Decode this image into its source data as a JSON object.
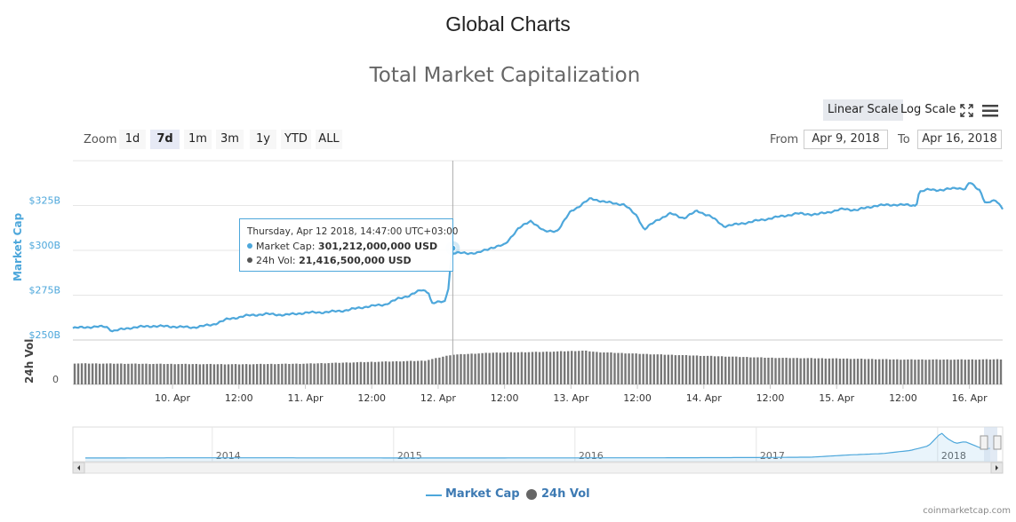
{
  "page": {
    "title": "Global Charts",
    "credit": "coinmarketcap.com"
  },
  "chart_title": "Total Market Capitalization",
  "scale": {
    "linear": "Linear Scale",
    "log": "Log Scale"
  },
  "zoom": {
    "label": "Zoom",
    "buttons": [
      "1d",
      "7d",
      "1m",
      "3m",
      "1y",
      "YTD",
      "ALL"
    ],
    "active": "7d"
  },
  "range": {
    "from_label": "From",
    "from_value": "Apr 9, 2018",
    "to_label": "To",
    "to_value": "Apr 16, 2018"
  },
  "tooltip": {
    "header": "Thursday, Apr 12 2018, 14:47:00 UTC+03:00",
    "market_cap_label": "Market Cap:",
    "market_cap_value": "301,212,000,000 USD",
    "vol_label": "24h Vol:",
    "vol_value": "21,416,500,000 USD"
  },
  "legend": {
    "market_cap": "Market Cap",
    "vol": "24h Vol"
  },
  "colors": {
    "market_cap": "#4da7db",
    "volume": "#666666",
    "grid": "#e6e6e6",
    "navigator_line": "#4da7db"
  },
  "icons": [
    "fullscreen-icon",
    "menu-icon"
  ],
  "chart_data": {
    "type": "line",
    "title": "Total Market Capitalization",
    "ylabel": "Market Cap",
    "ylabel2": "24h Vol",
    "y_ticks": [
      "$250B",
      "$275B",
      "$300B",
      "$325B"
    ],
    "ylim": [
      250,
      350
    ],
    "vol_ticks": [
      "0"
    ],
    "x_ticks": [
      "10. Apr",
      "12:00",
      "11. Apr",
      "12:00",
      "12. Apr",
      "12:00",
      "13. Apr",
      "12:00",
      "14. Apr",
      "12:00",
      "15. Apr",
      "12:00",
      "16. Apr",
      "12:00"
    ],
    "x_start": 9.25,
    "x_end": 16.25,
    "series": [
      {
        "name": "Market Cap",
        "unit": "billion USD",
        "points": [
          [
            9.25,
            256.6
          ],
          [
            9.35,
            257.2
          ],
          [
            9.5,
            257.5
          ],
          [
            9.55,
            255
          ],
          [
            9.7,
            257
          ],
          [
            9.85,
            257.8
          ],
          [
            10.0,
            257.5
          ],
          [
            10.15,
            257.0
          ],
          [
            10.3,
            258.5
          ],
          [
            10.4,
            261.3
          ],
          [
            10.55,
            263.5
          ],
          [
            10.7,
            264.5
          ],
          [
            10.85,
            264.0
          ],
          [
            11.0,
            265.2
          ],
          [
            11.15,
            265.5
          ],
          [
            11.3,
            266.5
          ],
          [
            11.45,
            268.5
          ],
          [
            11.6,
            269.8
          ],
          [
            11.7,
            273.0
          ],
          [
            11.78,
            274.8
          ],
          [
            11.88,
            278.0
          ],
          [
            11.93,
            276.5
          ],
          [
            11.95,
            270.5
          ],
          [
            12.05,
            271.5
          ],
          [
            12.08,
            280
          ],
          [
            12.1,
            298.5
          ],
          [
            12.2,
            298.5
          ],
          [
            12.3,
            298.5
          ],
          [
            12.4,
            301.5
          ],
          [
            12.5,
            303.0
          ],
          [
            12.6,
            312.0
          ],
          [
            12.7,
            316.5
          ],
          [
            12.8,
            310.5
          ],
          [
            12.9,
            311.0
          ],
          [
            13.0,
            322.0
          ],
          [
            13.05,
            324.0
          ],
          [
            13.15,
            329.0
          ],
          [
            13.25,
            327.0
          ],
          [
            13.4,
            325.5
          ],
          [
            13.5,
            319.0
          ],
          [
            13.55,
            311.5
          ],
          [
            13.65,
            317.0
          ],
          [
            13.75,
            320.5
          ],
          [
            13.85,
            318.0
          ],
          [
            13.95,
            322.0
          ],
          [
            14.05,
            319.0
          ],
          [
            14.15,
            313.5
          ],
          [
            14.25,
            314.5
          ],
          [
            14.4,
            316.5
          ],
          [
            14.55,
            318.5
          ],
          [
            14.7,
            320.5
          ],
          [
            14.85,
            320.0
          ],
          [
            14.95,
            321.5
          ],
          [
            15.05,
            323.0
          ],
          [
            15.15,
            322.5
          ],
          [
            15.3,
            325.0
          ],
          [
            15.45,
            325.5
          ],
          [
            15.6,
            325.0
          ],
          [
            15.62,
            332.5
          ],
          [
            15.7,
            334.0
          ],
          [
            15.8,
            333.5
          ],
          [
            15.9,
            335.0
          ],
          [
            15.97,
            334.0
          ],
          [
            16.0,
            338.0
          ],
          [
            16.08,
            333.5
          ],
          [
            16.12,
            326.0
          ],
          [
            16.2,
            328.0
          ],
          [
            16.25,
            323.5
          ]
        ]
      },
      {
        "name": "24h Vol",
        "unit": "billion USD",
        "points": [
          [
            9.25,
            14.2
          ],
          [
            10.0,
            13.8
          ],
          [
            10.5,
            13.6
          ],
          [
            11.0,
            14.0
          ],
          [
            11.5,
            15.2
          ],
          [
            11.9,
            16.0
          ],
          [
            12.1,
            20.0
          ],
          [
            12.4,
            21.4
          ],
          [
            12.8,
            22.0
          ],
          [
            13.1,
            22.8
          ],
          [
            13.2,
            21.8
          ],
          [
            13.6,
            20.4
          ],
          [
            14.0,
            19.3
          ],
          [
            14.5,
            18.0
          ],
          [
            15.0,
            17.5
          ],
          [
            15.5,
            16.8
          ],
          [
            16.0,
            16.8
          ],
          [
            16.25,
            17.0
          ]
        ],
        "ylim": [
          0,
          30
        ]
      }
    ],
    "navigator": {
      "x_ticks": [
        "2014",
        "2015",
        "2016",
        "2017",
        "2018"
      ],
      "points": [
        [
          2013.3,
          1.5
        ],
        [
          2013.8,
          8
        ],
        [
          2014.0,
          10
        ],
        [
          2014.5,
          7
        ],
        [
          2015.0,
          4
        ],
        [
          2015.5,
          3.5
        ],
        [
          2016.0,
          7
        ],
        [
          2016.5,
          10
        ],
        [
          2017.0,
          18
        ],
        [
          2017.3,
          30
        ],
        [
          2017.5,
          100
        ],
        [
          2017.7,
          150
        ],
        [
          2017.85,
          250
        ],
        [
          2017.95,
          400
        ],
        [
          2018.02,
          830
        ],
        [
          2018.05,
          650
        ],
        [
          2018.1,
          480
        ],
        [
          2018.15,
          540
        ],
        [
          2018.2,
          420
        ],
        [
          2018.25,
          300
        ],
        [
          2018.29,
          320
        ]
      ],
      "ylim": [
        0,
        900
      ]
    }
  }
}
